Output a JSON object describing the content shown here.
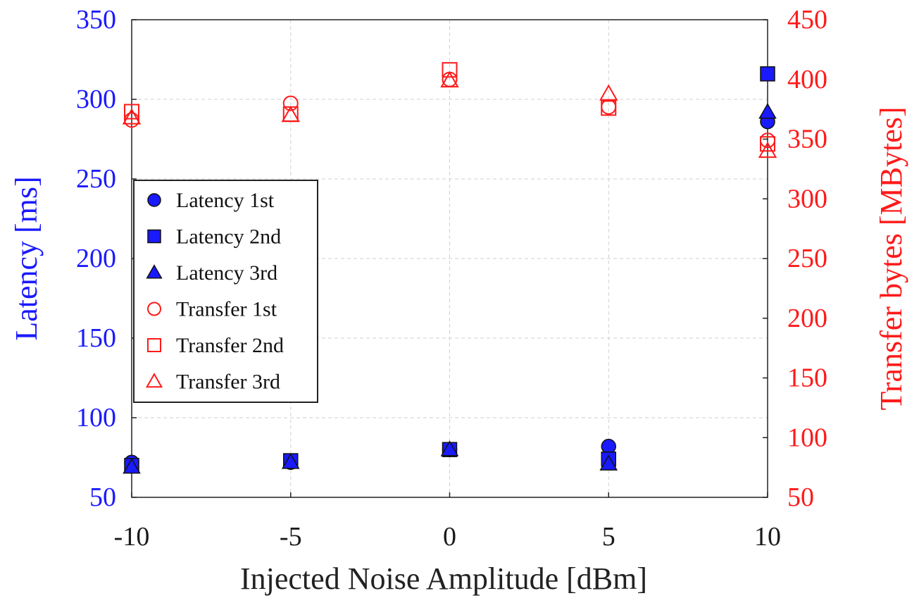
{
  "chart_data": {
    "type": "scatter",
    "title": "",
    "xlabel": "Injected Noise Amplitude [dBm]",
    "ylabel_left": "Latency [ms]",
    "ylabel_right": "Transfer bytes [MBytes]",
    "xlim": [
      -10,
      10
    ],
    "ylim_left": [
      50,
      350
    ],
    "ylim_right": [
      50,
      450
    ],
    "grid": true,
    "legend_position": "middle-left",
    "x_ticks": [
      "-10",
      "-5",
      "0",
      "5",
      "10"
    ],
    "x_tick_values": [
      -10,
      -5,
      0,
      5,
      10
    ],
    "y_left_ticks": [
      "50",
      "100",
      "150",
      "200",
      "250",
      "300",
      "350"
    ],
    "y_left_tick_values": [
      50,
      100,
      150,
      200,
      250,
      300,
      350
    ],
    "y_right_ticks": [
      "50",
      "100",
      "150",
      "200",
      "250",
      "300",
      "350",
      "400",
      "450"
    ],
    "y_right_tick_values": [
      50,
      100,
      150,
      200,
      250,
      300,
      350,
      400,
      450
    ],
    "colors": {
      "latency": "#1a1aff",
      "transfer": "#ff1a1a",
      "axis": "#222222"
    },
    "series": [
      {
        "name": "Latency 1st",
        "axis": "left",
        "marker": "circle",
        "filled": true,
        "x": [
          -10,
          -5,
          0,
          5,
          10
        ],
        "y": [
          72,
          72,
          80,
          82,
          286
        ]
      },
      {
        "name": "Latency 2nd",
        "axis": "left",
        "marker": "square",
        "filled": true,
        "x": [
          -10,
          -5,
          0,
          5,
          10
        ],
        "y": [
          70,
          73,
          80,
          74,
          316
        ]
      },
      {
        "name": "Latency 3rd",
        "axis": "left",
        "marker": "triangle",
        "filled": true,
        "x": [
          -10,
          -5,
          0,
          5,
          10
        ],
        "y": [
          69,
          72,
          80,
          71,
          292
        ]
      },
      {
        "name": "Transfer 1st",
        "axis": "right",
        "marker": "circle",
        "filled": false,
        "x": [
          -10,
          -5,
          0,
          5,
          10
        ],
        "y": [
          366,
          380,
          400,
          377,
          349
        ]
      },
      {
        "name": "Transfer 2nd",
        "axis": "right",
        "marker": "square",
        "filled": false,
        "x": [
          -10,
          -5,
          0,
          5,
          10
        ],
        "y": [
          373,
          371,
          408,
          376,
          346
        ]
      },
      {
        "name": "Transfer 3rd",
        "axis": "right",
        "marker": "triangle",
        "filled": false,
        "x": [
          -10,
          -5,
          0,
          5,
          10
        ],
        "y": [
          368,
          370,
          399,
          388,
          340
        ]
      }
    ]
  }
}
